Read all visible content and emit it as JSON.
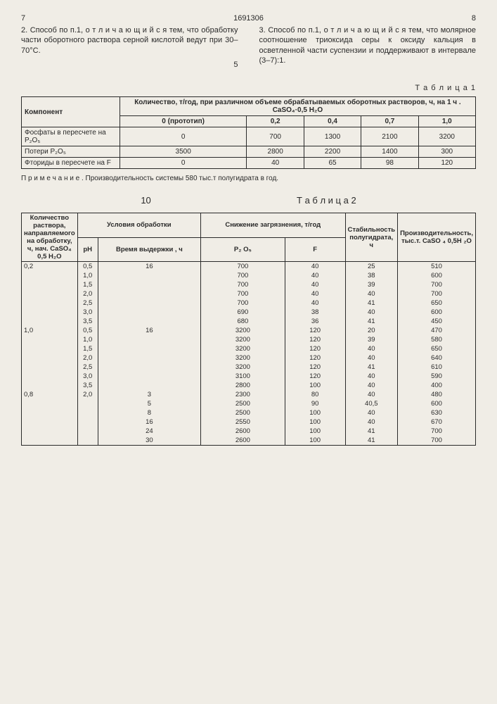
{
  "header": {
    "leftPage": "7",
    "docId": "1691306",
    "rightPage": "8"
  },
  "paragraphs": {
    "p2": "2. Способ по п.1, о т л и ч а ю щ и й с я тем, что обработку части оборотного раствора серной кислотой ведут при 30–70°С.",
    "p3": "3. Способ по п.1, о т л и ч а ю щ и й с я тем, что молярное соотношение триоксида серы к оксиду кальция в осветленной части суспензии и поддерживают в интервале (3–7):1.",
    "leftMarker": "5"
  },
  "table1": {
    "label": "Т а б л и ц а 1",
    "header1": "Компонент",
    "header2": "Количество, т/год, при различном объеме обрабатываемых оборотных растворов, ч, на 1 ч . CaSO₄·0,5 H₂O",
    "subHeaders": [
      "0 (прототип)",
      "0,2",
      "0,4",
      "0,7",
      "1,0"
    ],
    "rows": [
      {
        "label": "Фосфаты в пересчете на P₂O₅",
        "vals": [
          "0",
          "700",
          "1300",
          "2100",
          "3200"
        ]
      },
      {
        "label": "Потери P₂O₅",
        "vals": [
          "3500",
          "2800",
          "2200",
          "1400",
          "300"
        ]
      },
      {
        "label": "Фториды в пересчете на F",
        "vals": [
          "0",
          "40",
          "65",
          "98",
          "120"
        ]
      }
    ],
    "note": "П р и м е ч а н и е . Производительность системы 580 тыс.т полугидрата в год."
  },
  "midMark": "10",
  "table2": {
    "label": "Т а б л и ц а 2",
    "headers": {
      "c1": "Количество раствора, направляемого на обработку, ч, нач. CaSO₄ 0,5 H₂O",
      "c2": "Условия обработки",
      "c2a": "pH",
      "c2b": "Время выдержки , ч",
      "c3": "Снижение загрязнения, т/год",
      "c3a": "P₂ O₅",
      "c3b": "F",
      "c4": "Стабильность полугидрата, ч",
      "c5": "Производительность, тыс.т. CaSO ₄ 0,5H ₂O"
    },
    "rows": [
      [
        "0,2",
        "0,5",
        "16",
        "700",
        "40",
        "25",
        "510"
      ],
      [
        "",
        "1,0",
        "",
        "700",
        "40",
        "38",
        "600"
      ],
      [
        "",
        "1,5",
        "",
        "700",
        "40",
        "39",
        "700"
      ],
      [
        "",
        "2,0",
        "",
        "700",
        "40",
        "40",
        "700"
      ],
      [
        "",
        "2,5",
        "",
        "700",
        "40",
        "41",
        "650"
      ],
      [
        "",
        "3,0",
        "",
        "690",
        "38",
        "40",
        "600"
      ],
      [
        "",
        "3,5",
        "",
        "680",
        "36",
        "41",
        "450"
      ],
      [
        "1,0",
        "0,5",
        "16",
        "3200",
        "120",
        "20",
        "470"
      ],
      [
        "",
        "1,0",
        "",
        "3200",
        "120",
        "39",
        "580"
      ],
      [
        "",
        "1,5",
        "",
        "3200",
        "120",
        "40",
        "650"
      ],
      [
        "",
        "2,0",
        "",
        "3200",
        "120",
        "40",
        "640"
      ],
      [
        "",
        "2,5",
        "",
        "3200",
        "120",
        "41",
        "610"
      ],
      [
        "",
        "3,0",
        "",
        "3100",
        "120",
        "40",
        "590"
      ],
      [
        "",
        "3,5",
        "",
        "2800",
        "100",
        "40",
        "400"
      ],
      [
        "0,8",
        "2,0",
        "3",
        "2300",
        "80",
        "40",
        "480"
      ],
      [
        "",
        "",
        "5",
        "2500",
        "90",
        "40,5",
        "600"
      ],
      [
        "",
        "",
        "8",
        "2500",
        "100",
        "40",
        "630"
      ],
      [
        "",
        "",
        "16",
        "2550",
        "100",
        "40",
        "670"
      ],
      [
        "",
        "",
        "24",
        "2600",
        "100",
        "41",
        "700"
      ],
      [
        "",
        "",
        "30",
        "2600",
        "100",
        "41",
        "700"
      ]
    ]
  }
}
